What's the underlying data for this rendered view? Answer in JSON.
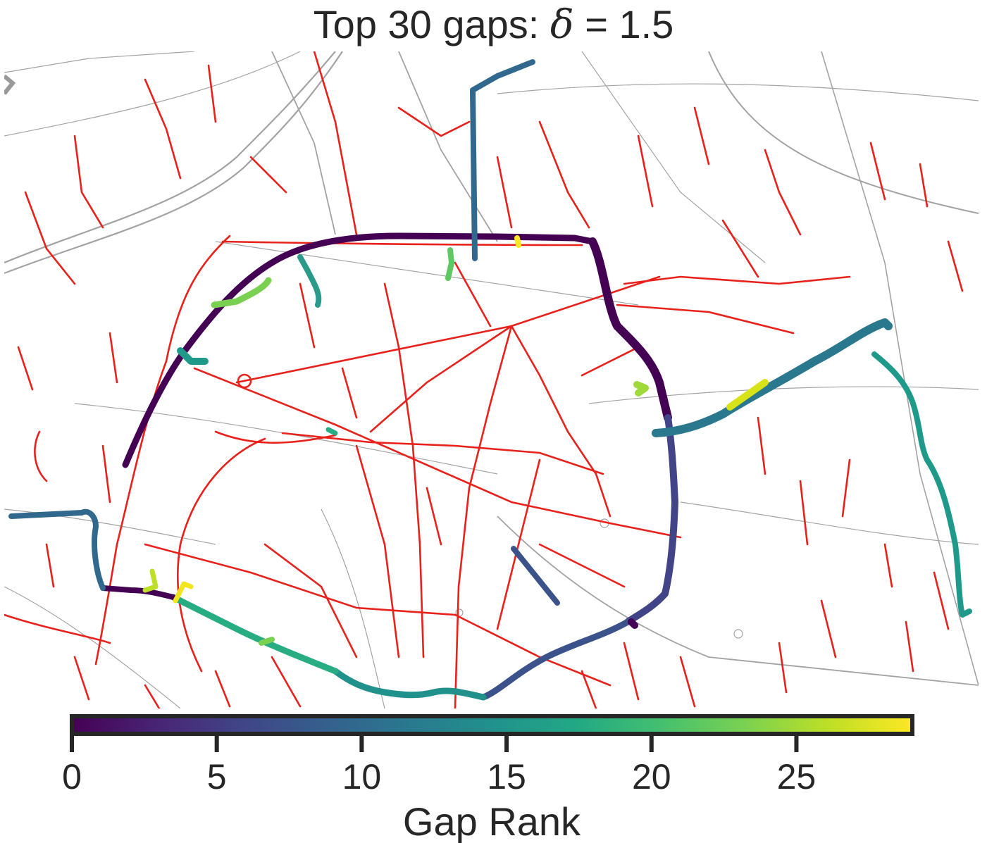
{
  "title": {
    "prefix": "Top 30 gaps: ",
    "symbol": "δ",
    "suffix": " = 1.5"
  },
  "colors": {
    "network_grey": "#a3a3a3",
    "bike_red": "#e8211b",
    "viridis": [
      "#440154",
      "#482475",
      "#414487",
      "#355f8d",
      "#2a788e",
      "#21918c",
      "#22a884",
      "#44bf70",
      "#7ad151",
      "#bddf26",
      "#fde725"
    ]
  },
  "colorbar": {
    "label": "Gap Rank",
    "min": 0,
    "max": 29,
    "ticks": [
      "0",
      "5",
      "10",
      "15",
      "20",
      "25"
    ]
  },
  "chart_data": {
    "type": "map",
    "legend": "colorbar-bottom",
    "gap_count": 30,
    "gap_rank_range": [
      0,
      29
    ]
  }
}
